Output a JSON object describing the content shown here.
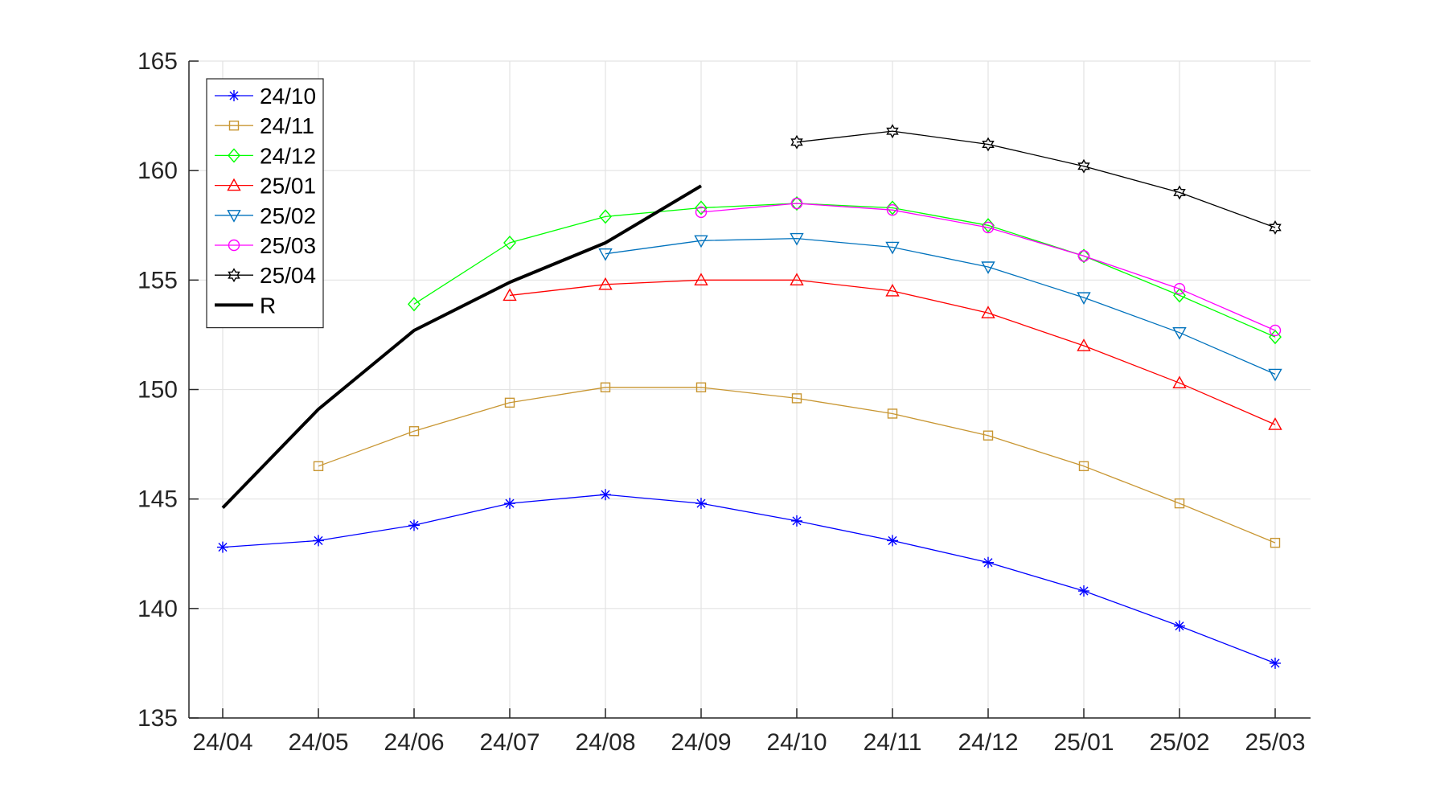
{
  "chart_data": {
    "type": "line",
    "title": "",
    "xlabel": "",
    "ylabel": "",
    "grid": true,
    "legend_position": "top-left",
    "categories": [
      "24/04",
      "24/05",
      "24/06",
      "24/07",
      "24/08",
      "24/09",
      "24/10",
      "24/11",
      "24/12",
      "25/01",
      "25/02",
      "25/03"
    ],
    "ylim": [
      135,
      165
    ],
    "yticks": [
      135,
      140,
      145,
      150,
      155,
      160,
      165
    ],
    "series": [
      {
        "name": "24/10",
        "color": "#0000ff",
        "marker": "asterisk",
        "line_width": "thin",
        "values": [
          142.8,
          143.1,
          143.8,
          144.8,
          145.2,
          144.8,
          144.0,
          143.1,
          142.1,
          140.8,
          139.2,
          137.5
        ]
      },
      {
        "name": "24/11",
        "color": "#c89632",
        "marker": "square",
        "line_width": "thin",
        "values": [
          null,
          146.5,
          148.1,
          149.4,
          150.1,
          150.1,
          149.6,
          148.9,
          147.9,
          146.5,
          144.8,
          143.0
        ]
      },
      {
        "name": "24/12",
        "color": "#00ff00",
        "marker": "diamond",
        "line_width": "thin",
        "values": [
          null,
          null,
          153.9,
          156.7,
          157.9,
          158.3,
          158.5,
          158.3,
          157.5,
          156.1,
          154.3,
          152.4
        ]
      },
      {
        "name": "25/01",
        "color": "#ff0000",
        "marker": "triangle-up",
        "line_width": "thin",
        "values": [
          null,
          null,
          null,
          154.3,
          154.8,
          155.0,
          155.0,
          154.5,
          153.5,
          152.0,
          150.3,
          148.4
        ]
      },
      {
        "name": "25/02",
        "color": "#0072bd",
        "marker": "triangle-down",
        "line_width": "thin",
        "values": [
          null,
          null,
          null,
          null,
          156.2,
          156.8,
          156.9,
          156.5,
          155.6,
          154.2,
          152.6,
          150.7
        ]
      },
      {
        "name": "25/03",
        "color": "#ff00ff",
        "marker": "circle",
        "line_width": "thin",
        "values": [
          null,
          null,
          null,
          null,
          null,
          158.1,
          158.5,
          158.2,
          157.4,
          156.1,
          154.6,
          152.7
        ]
      },
      {
        "name": "25/04",
        "color": "#000000",
        "marker": "hexagram",
        "line_width": "thin",
        "values": [
          null,
          null,
          null,
          null,
          null,
          null,
          161.3,
          161.8,
          161.2,
          160.2,
          159.0,
          157.4
        ]
      },
      {
        "name": "R",
        "color": "#000000",
        "marker": "none",
        "line_width": "thick",
        "values": [
          144.6,
          149.1,
          152.7,
          154.9,
          156.7,
          159.3,
          null,
          null,
          null,
          null,
          null,
          null
        ]
      }
    ]
  }
}
